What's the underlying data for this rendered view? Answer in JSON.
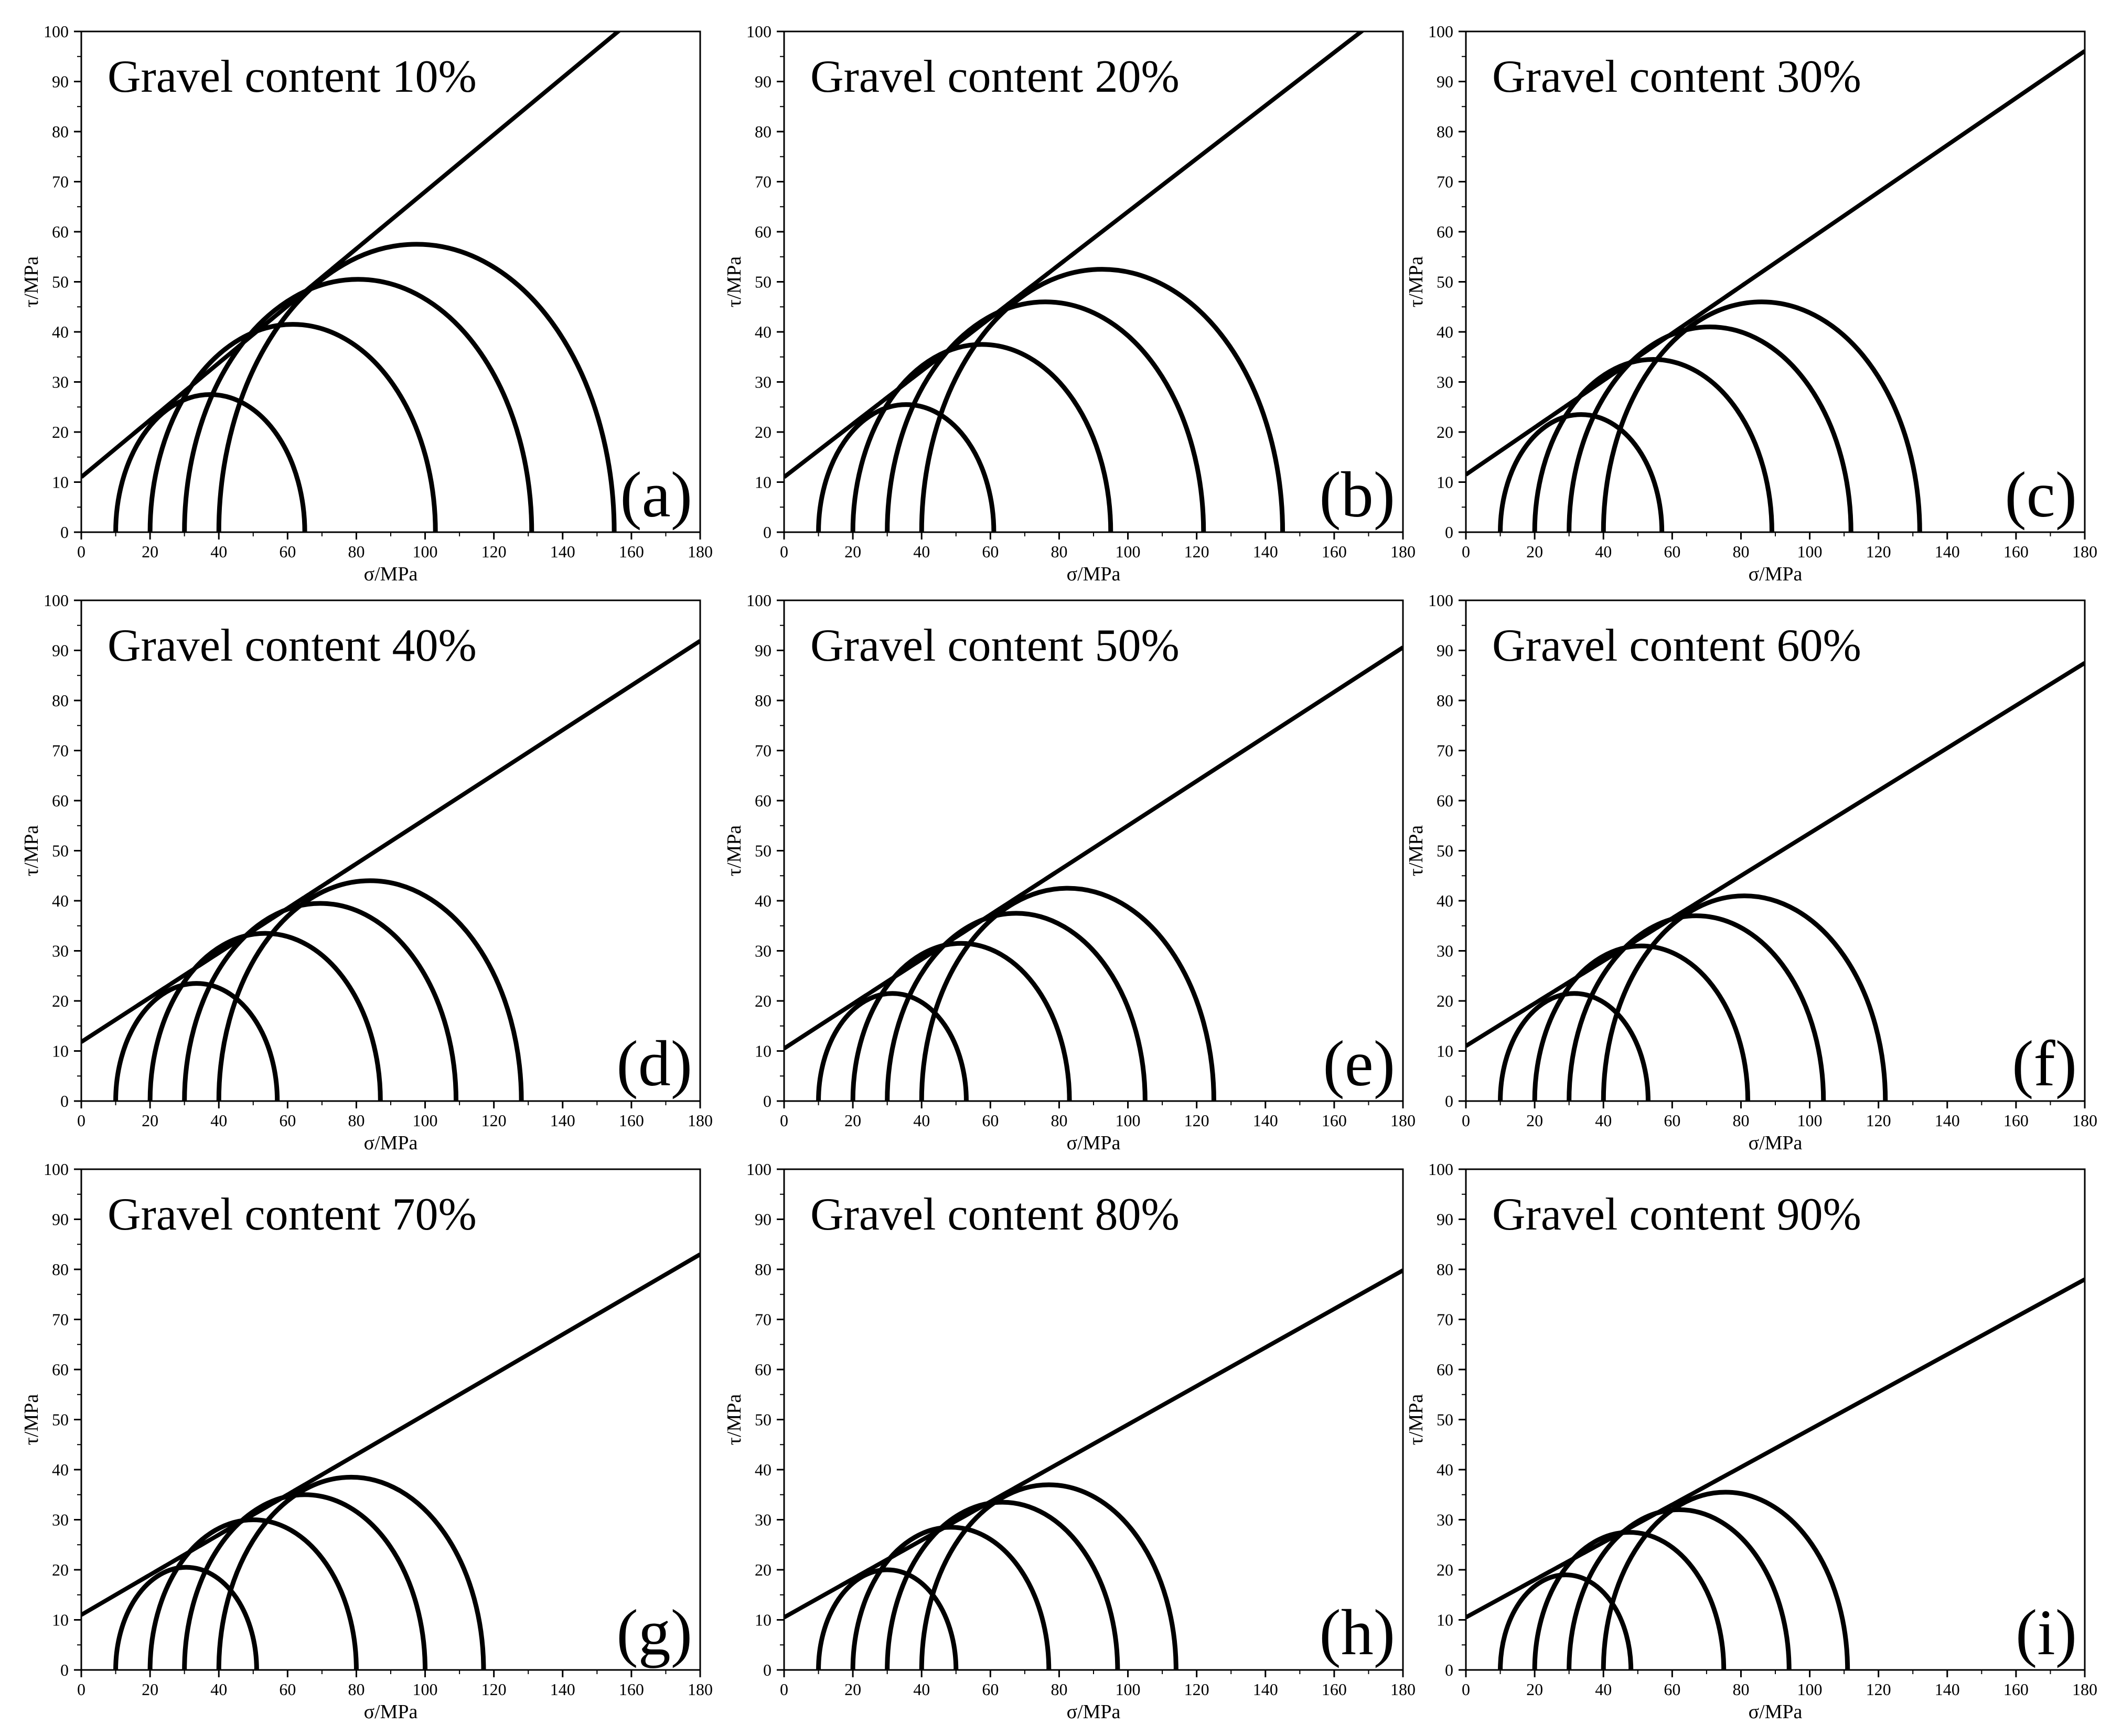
{
  "figure": {
    "background": "#ffffff",
    "line_color": "#000000"
  },
  "chart_data": [
    {
      "type": "line",
      "panel_label": "(a)",
      "title": "Gravel content 10%",
      "xlabel": "σ/MPa",
      "ylabel": "τ/MPa",
      "xlim": [
        0,
        180
      ],
      "ylim": [
        0,
        100
      ],
      "xticks": [
        0,
        20,
        40,
        60,
        80,
        100,
        120,
        140,
        160,
        180
      ],
      "yticks": [
        0,
        10,
        20,
        30,
        40,
        50,
        60,
        70,
        80,
        90,
        100
      ],
      "envelope": {
        "cohesion": 11,
        "slope": 0.57
      },
      "circles": [
        {
          "sigma3": 10,
          "sigma1": 65
        },
        {
          "sigma3": 20,
          "sigma1": 103
        },
        {
          "sigma3": 30,
          "sigma1": 131
        },
        {
          "sigma3": 40,
          "sigma1": 155
        }
      ]
    },
    {
      "type": "line",
      "panel_label": "(b)",
      "title": "Gravel content 20%",
      "xlabel": "σ/MPa",
      "ylabel": "τ/MPa",
      "xlim": [
        0,
        180
      ],
      "ylim": [
        0,
        100
      ],
      "xticks": [
        0,
        20,
        40,
        60,
        80,
        100,
        120,
        140,
        160,
        180
      ],
      "yticks": [
        0,
        10,
        20,
        30,
        40,
        50,
        60,
        70,
        80,
        90,
        100
      ],
      "envelope": {
        "cohesion": 11,
        "slope": 0.53
      },
      "circles": [
        {
          "sigma3": 10,
          "sigma1": 61
        },
        {
          "sigma3": 20,
          "sigma1": 95
        },
        {
          "sigma3": 30,
          "sigma1": 122
        },
        {
          "sigma3": 40,
          "sigma1": 145
        }
      ]
    },
    {
      "type": "line",
      "panel_label": "(c)",
      "title": "Gravel content 30%",
      "xlabel": "σ/MPa",
      "ylabel": "τ/MPa",
      "xlim": [
        0,
        180
      ],
      "ylim": [
        0,
        100
      ],
      "xticks": [
        0,
        20,
        40,
        60,
        80,
        100,
        120,
        140,
        160,
        180
      ],
      "yticks": [
        0,
        10,
        20,
        30,
        40,
        50,
        60,
        70,
        80,
        90,
        100
      ],
      "envelope": {
        "cohesion": 11.5,
        "slope": 0.47
      },
      "circles": [
        {
          "sigma3": 10,
          "sigma1": 57
        },
        {
          "sigma3": 20,
          "sigma1": 89
        },
        {
          "sigma3": 30,
          "sigma1": 112
        },
        {
          "sigma3": 40,
          "sigma1": 132
        }
      ]
    },
    {
      "type": "line",
      "panel_label": "(d)",
      "title": "Gravel content 40%",
      "xlabel": "σ/MPa",
      "ylabel": "τ/MPa",
      "xlim": [
        0,
        180
      ],
      "ylim": [
        0,
        100
      ],
      "xticks": [
        0,
        20,
        40,
        60,
        80,
        100,
        120,
        140,
        160,
        180
      ],
      "yticks": [
        0,
        10,
        20,
        30,
        40,
        50,
        60,
        70,
        80,
        90,
        100
      ],
      "envelope": {
        "cohesion": 11.8,
        "slope": 0.445
      },
      "circles": [
        {
          "sigma3": 10,
          "sigma1": 57
        },
        {
          "sigma3": 20,
          "sigma1": 87
        },
        {
          "sigma3": 30,
          "sigma1": 109
        },
        {
          "sigma3": 40,
          "sigma1": 128
        }
      ]
    },
    {
      "type": "line",
      "panel_label": "(e)",
      "title": "Gravel content 50%",
      "xlabel": "σ/MPa",
      "ylabel": "τ/MPa",
      "xlim": [
        0,
        180
      ],
      "ylim": [
        0,
        100
      ],
      "xticks": [
        0,
        20,
        40,
        60,
        80,
        100,
        120,
        140,
        160,
        180
      ],
      "yticks": [
        0,
        10,
        20,
        30,
        40,
        50,
        60,
        70,
        80,
        90,
        100
      ],
      "envelope": {
        "cohesion": 10.5,
        "slope": 0.445
      },
      "circles": [
        {
          "sigma3": 10,
          "sigma1": 53
        },
        {
          "sigma3": 20,
          "sigma1": 83
        },
        {
          "sigma3": 30,
          "sigma1": 105
        },
        {
          "sigma3": 40,
          "sigma1": 125
        }
      ]
    },
    {
      "type": "line",
      "panel_label": "(f)",
      "title": "Gravel content 60%",
      "xlabel": "σ/MPa",
      "ylabel": "τ/MPa",
      "xlim": [
        0,
        180
      ],
      "ylim": [
        0,
        100
      ],
      "xticks": [
        0,
        20,
        40,
        60,
        80,
        100,
        120,
        140,
        160,
        180
      ],
      "yticks": [
        0,
        10,
        20,
        30,
        40,
        50,
        60,
        70,
        80,
        90,
        100
      ],
      "envelope": {
        "cohesion": 11,
        "slope": 0.425
      },
      "circles": [
        {
          "sigma3": 10,
          "sigma1": 53
        },
        {
          "sigma3": 20,
          "sigma1": 82
        },
        {
          "sigma3": 30,
          "sigma1": 104
        },
        {
          "sigma3": 40,
          "sigma1": 122
        }
      ]
    },
    {
      "type": "line",
      "panel_label": "(g)",
      "title": "Gravel content 70%",
      "xlabel": "σ/MPa",
      "ylabel": "τ/MPa",
      "xlim": [
        0,
        180
      ],
      "ylim": [
        0,
        100
      ],
      "xticks": [
        0,
        20,
        40,
        60,
        80,
        100,
        120,
        140,
        160,
        180
      ],
      "yticks": [
        0,
        10,
        20,
        30,
        40,
        50,
        60,
        70,
        80,
        90,
        100
      ],
      "envelope": {
        "cohesion": 11,
        "slope": 0.4
      },
      "circles": [
        {
          "sigma3": 10,
          "sigma1": 51
        },
        {
          "sigma3": 20,
          "sigma1": 80
        },
        {
          "sigma3": 30,
          "sigma1": 100
        },
        {
          "sigma3": 40,
          "sigma1": 117
        }
      ]
    },
    {
      "type": "line",
      "panel_label": "(h)",
      "title": "Gravel content 80%",
      "xlabel": "σ/MPa",
      "ylabel": "τ/MPa",
      "xlim": [
        0,
        180
      ],
      "ylim": [
        0,
        100
      ],
      "xticks": [
        0,
        20,
        40,
        60,
        80,
        100,
        120,
        140,
        160,
        180
      ],
      "yticks": [
        0,
        10,
        20,
        30,
        40,
        50,
        60,
        70,
        80,
        90,
        100
      ],
      "envelope": {
        "cohesion": 10.5,
        "slope": 0.385
      },
      "circles": [
        {
          "sigma3": 10,
          "sigma1": 50
        },
        {
          "sigma3": 20,
          "sigma1": 77
        },
        {
          "sigma3": 30,
          "sigma1": 97
        },
        {
          "sigma3": 40,
          "sigma1": 114
        }
      ]
    },
    {
      "type": "line",
      "panel_label": "(i)",
      "title": "Gravel content 90%",
      "xlabel": "σ/MPa",
      "ylabel": "τ/MPa",
      "xlim": [
        0,
        180
      ],
      "ylim": [
        0,
        100
      ],
      "xticks": [
        0,
        20,
        40,
        60,
        80,
        100,
        120,
        140,
        160,
        180
      ],
      "yticks": [
        0,
        10,
        20,
        30,
        40,
        50,
        60,
        70,
        80,
        90,
        100
      ],
      "envelope": {
        "cohesion": 10.5,
        "slope": 0.375
      },
      "circles": [
        {
          "sigma3": 10,
          "sigma1": 48
        },
        {
          "sigma3": 20,
          "sigma1": 75
        },
        {
          "sigma3": 30,
          "sigma1": 94
        },
        {
          "sigma3": 40,
          "sigma1": 111
        }
      ]
    }
  ]
}
